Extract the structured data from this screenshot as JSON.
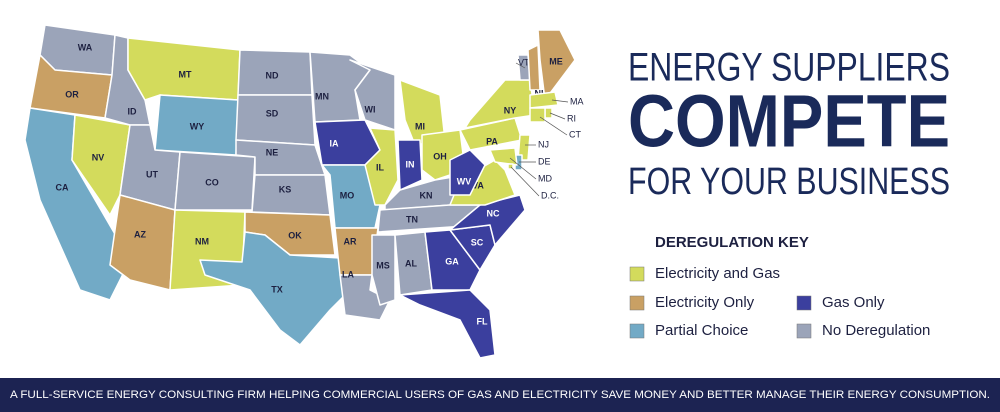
{
  "header": {
    "lines": [
      "ENERGY SUPPLIERS",
      "COMPETE",
      "FOR YOUR BUSINESS"
    ]
  },
  "key": {
    "title": "DEREGULATION KEY",
    "items": [
      {
        "label": "Electricity and Gas",
        "color": "#d3db5c"
      },
      {
        "label": "Electricity Only",
        "color": "#c9a064"
      },
      {
        "label": "Gas Only",
        "color": "#3b3f9e"
      },
      {
        "label": "Partial Choice",
        "color": "#72aac6"
      },
      {
        "label": "No Deregulation",
        "color": "#9ba4b9"
      }
    ]
  },
  "map": {
    "states": [
      {
        "label": "WA",
        "color": "#9ba4b9"
      },
      {
        "label": "OR",
        "color": "#c9a064"
      },
      {
        "label": "CA",
        "color": "#72aac6"
      },
      {
        "label": "NV",
        "color": "#d3db5c"
      },
      {
        "label": "ID",
        "color": "#9ba4b9"
      },
      {
        "label": "MT",
        "color": "#d3db5c"
      },
      {
        "label": "WY",
        "color": "#72aac6"
      },
      {
        "label": "UT",
        "color": "#9ba4b9"
      },
      {
        "label": "AZ",
        "color": "#c9a064"
      },
      {
        "label": "CO",
        "color": "#9ba4b9"
      },
      {
        "label": "NM",
        "color": "#d3db5c"
      },
      {
        "label": "ND",
        "color": "#9ba4b9"
      },
      {
        "label": "SD",
        "color": "#9ba4b9"
      },
      {
        "label": "NE",
        "color": "#9ba4b9"
      },
      {
        "label": "KS",
        "color": "#9ba4b9"
      },
      {
        "label": "OK",
        "color": "#c9a064"
      },
      {
        "label": "TX",
        "color": "#72aac6"
      },
      {
        "label": "MN",
        "color": "#9ba4b9"
      },
      {
        "label": "IA",
        "color": "#3b3f9e"
      },
      {
        "label": "MO",
        "color": "#72aac6"
      },
      {
        "label": "AR",
        "color": "#c9a064"
      },
      {
        "label": "LA",
        "color": "#9ba4b9"
      },
      {
        "label": "WI",
        "color": "#9ba4b9"
      },
      {
        "label": "IL",
        "color": "#d3db5c"
      },
      {
        "label": "MI",
        "color": "#d3db5c"
      },
      {
        "label": "IN",
        "color": "#3b3f9e"
      },
      {
        "label": "OH",
        "color": "#d3db5c"
      },
      {
        "label": "KN",
        "color": "#9ba4b9"
      },
      {
        "label": "TN",
        "color": "#9ba4b9"
      },
      {
        "label": "MS",
        "color": "#9ba4b9"
      },
      {
        "label": "AL",
        "color": "#9ba4b9"
      },
      {
        "label": "GA",
        "color": "#3b3f9e"
      },
      {
        "label": "FL",
        "color": "#3b3f9e"
      },
      {
        "label": "SC",
        "color": "#3b3f9e"
      },
      {
        "label": "NC",
        "color": "#3b3f9e"
      },
      {
        "label": "VA",
        "color": "#d3db5c"
      },
      {
        "label": "WV",
        "color": "#3b3f9e"
      },
      {
        "label": "PA",
        "color": "#d3db5c"
      },
      {
        "label": "NY",
        "color": "#d3db5c"
      },
      {
        "label": "VT",
        "color": "#9ba4b9"
      },
      {
        "label": "NH",
        "color": "#c9a064"
      },
      {
        "label": "ME",
        "color": "#c9a064"
      },
      {
        "label": "MA",
        "color": "#d3db5c"
      },
      {
        "label": "RI",
        "color": "#d3db5c"
      },
      {
        "label": "CT",
        "color": "#d3db5c"
      },
      {
        "label": "NJ",
        "color": "#d3db5c"
      },
      {
        "label": "DE",
        "color": "#72aac6"
      },
      {
        "label": "MD",
        "color": "#d3db5c"
      },
      {
        "label": "D.C.",
        "color": "#d3db5c"
      }
    ]
  },
  "footer": {
    "text": "A FULL-SERVICE ENERGY CONSULTING FIRM HELPING COMMERCIAL USERS OF GAS AND ELECTRICITY SAVE MONEY AND BETTER MANAGE THEIR ENERGY CONSUMPTION."
  }
}
